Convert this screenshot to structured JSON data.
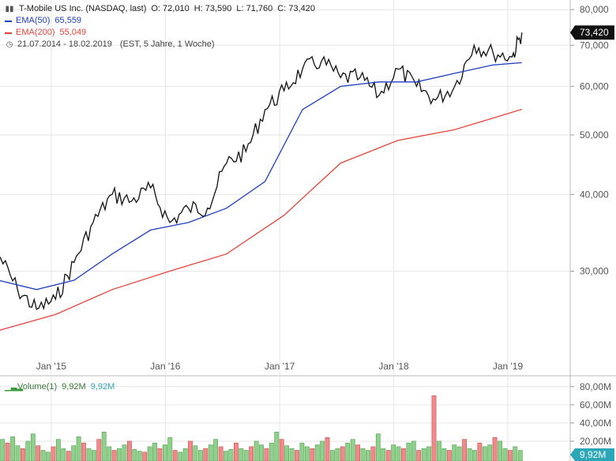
{
  "header": {
    "title": "T-Mobile US Inc. (NASDAQ, last)",
    "open": "O: 72,010",
    "high": "H: 73,590",
    "low": "L: 71,760",
    "close": "C: 73,420"
  },
  "indicators": [
    {
      "name": "EMA(50)",
      "value": "65,559",
      "color": "#1f3fbf"
    },
    {
      "name": "EMA(200)",
      "value": "55,049",
      "color": "#e5463b"
    }
  ],
  "date_range": "21.07.2014 - 18.02.2019",
  "date_info": "(EST, 5 Jahre, 1 Woche)",
  "volume_legend": {
    "name": "Volume(1)",
    "value1": "9,92M",
    "value2": "9,92M"
  },
  "last_price_tag": "73,420",
  "last_volume_tag": "9,92M",
  "colors": {
    "price_line": "#111111",
    "ema50": "#1f3fbf",
    "ema200": "#e5463b",
    "vol_up": "#8fd18c",
    "vol_down": "#ef8a8a",
    "tag_dark": "#111111",
    "tag_teal": "#2ba7b7"
  },
  "chart_data": [
    {
      "type": "line",
      "title": "T-Mobile US Inc. (NASDAQ, last)",
      "x_ticks": [
        "Jan '15",
        "Jan '16",
        "Jan '17",
        "Jan '18",
        "Jan '19"
      ],
      "y_ticks": [
        "30,000",
        "40,000",
        "50,000",
        "60,000",
        "70,000",
        "80,000"
      ],
      "ylim": [
        21,
        81
      ],
      "log_scale": true,
      "x_range": [
        "2014-07-21",
        "2019-02-18"
      ],
      "series": [
        {
          "name": "T-Mobile US Inc.",
          "x": [
            "2014-07",
            "2014-09",
            "2014-11",
            "2015-01",
            "2015-03",
            "2015-05",
            "2015-07",
            "2015-09",
            "2015-11",
            "2016-01",
            "2016-03",
            "2016-05",
            "2016-07",
            "2016-09",
            "2016-11",
            "2017-01",
            "2017-03",
            "2017-05",
            "2017-07",
            "2017-09",
            "2017-11",
            "2018-01",
            "2018-03",
            "2018-05",
            "2018-07",
            "2018-09",
            "2018-11",
            "2019-01",
            "2019-02"
          ],
          "values": [
            32,
            28,
            26,
            27,
            31,
            36,
            40,
            39,
            41,
            36,
            38,
            38,
            45,
            47,
            55,
            59,
            64,
            66,
            62,
            62,
            58,
            64,
            60,
            57,
            60,
            70,
            68,
            67,
            73.42
          ]
        },
        {
          "name": "EMA(50)",
          "x": [
            "2014-07",
            "2014-11",
            "2015-03",
            "2015-07",
            "2015-11",
            "2016-03",
            "2016-07",
            "2016-11",
            "2017-03",
            "2017-07",
            "2017-11",
            "2018-03",
            "2018-07",
            "2018-11",
            "2019-02"
          ],
          "values": [
            29,
            28,
            29,
            32,
            35,
            36,
            38,
            42,
            55,
            60,
            61,
            61,
            63,
            65,
            65.559
          ]
        },
        {
          "name": "EMA(200)",
          "x": [
            "2014-07",
            "2015-01",
            "2015-07",
            "2016-01",
            "2016-07",
            "2017-01",
            "2017-07",
            "2018-01",
            "2018-07",
            "2019-02"
          ],
          "values": [
            24,
            25.5,
            28,
            30,
            32,
            37,
            45,
            49,
            51,
            55.049
          ]
        }
      ]
    },
    {
      "type": "bar",
      "title": "Volume(1)",
      "y_ticks": [
        "20,00M",
        "40,00M",
        "60,00M",
        "80,00M"
      ],
      "ylim": [
        0,
        85
      ],
      "series": [
        {
          "name": "Volume(1)",
          "unit": "M",
          "values": [
            22,
            18,
            25,
            15,
            12,
            20,
            28,
            15,
            10,
            8,
            14,
            22,
            12,
            9,
            15,
            25,
            18,
            12,
            10,
            22,
            30,
            14,
            10,
            12,
            16,
            20,
            11,
            9,
            8,
            14,
            18,
            12,
            16,
            24,
            10,
            8,
            12,
            20,
            15,
            10,
            12,
            16,
            22,
            14,
            9,
            11,
            18,
            12,
            10,
            14,
            20,
            16,
            12,
            18,
            30,
            22,
            15,
            12,
            10,
            18,
            14,
            12,
            16,
            20,
            24,
            10,
            12,
            14,
            18,
            22,
            16,
            12,
            10,
            14,
            28,
            12,
            10,
            16,
            14,
            12,
            18,
            20,
            10,
            12,
            14,
            70,
            20,
            12,
            10,
            16,
            14,
            22,
            12,
            10,
            18,
            14,
            16,
            24,
            20,
            12,
            10,
            14,
            9.92
          ]
        }
      ]
    }
  ]
}
